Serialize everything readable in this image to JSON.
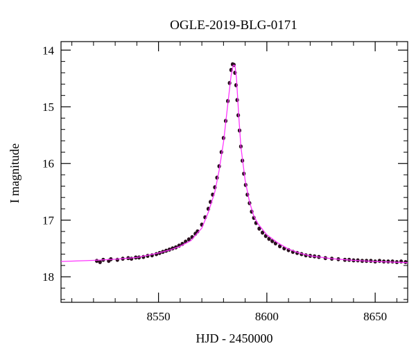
{
  "chart_data": {
    "type": "scatter",
    "title": "OGLE-2019-BLG-0171",
    "xlabel": "HJD - 2450000",
    "ylabel": "I magnitude",
    "xlim": [
      8505,
      8665
    ],
    "ylim": [
      18.45,
      13.85
    ],
    "y_inverted": true,
    "x_ticks": [
      8550,
      8600,
      8650
    ],
    "y_ticks": [
      14,
      15,
      16,
      17,
      18
    ],
    "grid": false,
    "legend": "none",
    "series": [
      {
        "kind": "points",
        "color": "#2a0f1f",
        "x": [
          8521.5,
          8523.0,
          8524.5,
          8527.0,
          8528.0,
          8531.0,
          8533.5,
          8536.0,
          8537.5,
          8539.5,
          8541.0,
          8543.0,
          8545.0,
          8547.0,
          8549.0,
          8550.5,
          8552.0,
          8553.5,
          8555.0,
          8556.5,
          8558.0,
          8559.5,
          8561.0,
          8562.5,
          8564.0,
          8565.5,
          8567.0,
          8568.0,
          8570.0,
          8571.5,
          8573.0,
          8574.0,
          8575.0,
          8576.0,
          8577.0,
          8578.0,
          8579.0,
          8580.0,
          8581.0,
          8582.0,
          8582.8,
          8583.5,
          8584.2,
          8584.8,
          8585.3,
          8585.8,
          8586.3,
          8586.8,
          8587.4,
          8588.0,
          8588.7,
          8589.4,
          8590.2,
          8591.0,
          8592.0,
          8593.0,
          8594.0,
          8595.0,
          8596.5,
          8598.0,
          8599.5,
          8601.0,
          8602.5,
          8604.0,
          8606.0,
          8608.0,
          8610.0,
          8612.0,
          8614.0,
          8616.0,
          8618.0,
          8620.0,
          8622.0,
          8624.0,
          8627.0,
          8630.0,
          8633.0,
          8636.0,
          8638.0,
          8640.0,
          8642.0,
          8644.0,
          8646.0,
          8648.0,
          8650.0,
          8652.0,
          8654.0,
          8656.0,
          8658.0,
          8660.0,
          8662.0,
          8664.0
        ],
        "y": [
          17.72,
          17.74,
          17.7,
          17.72,
          17.69,
          17.7,
          17.68,
          17.67,
          17.68,
          17.66,
          17.66,
          17.65,
          17.63,
          17.62,
          17.6,
          17.58,
          17.56,
          17.54,
          17.52,
          17.5,
          17.48,
          17.45,
          17.42,
          17.38,
          17.34,
          17.3,
          17.24,
          17.2,
          17.08,
          16.95,
          16.8,
          16.68,
          16.55,
          16.42,
          16.25,
          16.05,
          15.8,
          15.55,
          15.25,
          14.9,
          14.58,
          14.35,
          14.25,
          14.26,
          14.4,
          14.62,
          14.88,
          15.15,
          15.42,
          15.7,
          15.95,
          16.18,
          16.38,
          16.55,
          16.7,
          16.85,
          16.96,
          17.05,
          17.15,
          17.22,
          17.28,
          17.33,
          17.37,
          17.41,
          17.46,
          17.5,
          17.53,
          17.56,
          17.58,
          17.6,
          17.62,
          17.63,
          17.64,
          17.65,
          17.67,
          17.68,
          17.69,
          17.7,
          17.7,
          17.71,
          17.71,
          17.72,
          17.72,
          17.72,
          17.73,
          17.72,
          17.73,
          17.73,
          17.73,
          17.74,
          17.73,
          17.74
        ]
      },
      {
        "kind": "model",
        "color": "#ff33ff",
        "x": [
          8505,
          8520,
          8530,
          8540,
          8550,
          8555,
          8560,
          8565,
          8570,
          8573,
          8576,
          8578,
          8580,
          8582,
          8583.5,
          8584.5,
          8585.3,
          8586,
          8587,
          8588,
          8590,
          8592,
          8594,
          8596,
          8600,
          8605,
          8610,
          8615,
          8620,
          8630,
          8640,
          8650,
          8665
        ],
        "y": [
          17.73,
          17.71,
          17.69,
          17.66,
          17.58,
          17.53,
          17.46,
          17.36,
          17.14,
          16.86,
          16.5,
          16.12,
          15.62,
          14.95,
          14.45,
          14.27,
          14.27,
          14.5,
          15.15,
          15.7,
          16.3,
          16.68,
          16.93,
          17.07,
          17.26,
          17.4,
          17.51,
          17.58,
          17.63,
          17.68,
          17.71,
          17.73,
          17.75
        ]
      }
    ]
  }
}
